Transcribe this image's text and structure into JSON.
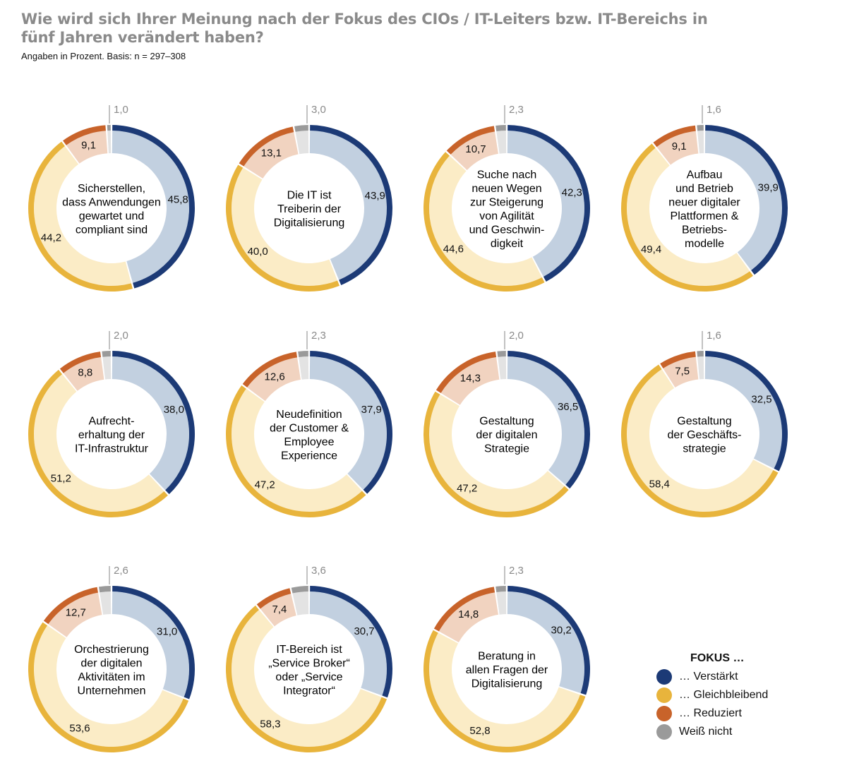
{
  "title": "Wie wird sich Ihrer Meinung nach der Fokus des CIOs / IT-Leiters bzw. IT-Bereichs in fünf Jahren verändert haben?",
  "subtitle": "Angaben in Prozent. Basis: n = 297–308",
  "legend": {
    "title": "FOKUS …",
    "items": [
      {
        "label": "… Verstärkt",
        "color": "#1c3a76"
      },
      {
        "label": "… Gleichbleibend",
        "color": "#e8b43c"
      },
      {
        "label": "… Reduziert",
        "color": "#c8632a"
      },
      {
        "label": "Weiß nicht",
        "color": "#9a9a9a"
      }
    ]
  },
  "colors": {
    "verstaerkt_outer": "#1c3a76",
    "verstaerkt_inner": "#c2d0e0",
    "gleich_outer": "#e8b43c",
    "gleich_inner": "#fbecc6",
    "reduziert_outer": "#c8632a",
    "reduziert_inner": "#f1d3c0",
    "weiss_outer": "#9a9a9a",
    "weiss_inner": "#e3e3e3"
  },
  "chart_data": {
    "type": "donut",
    "series_names": [
      "… Verstärkt",
      "… Gleichbleibend",
      "… Reduziert",
      "Weiß nicht"
    ],
    "charts": [
      {
        "label": [
          "Sicherstellen,",
          "dass Anwendungen",
          "gewartet und",
          "compliant sind"
        ],
        "values": [
          45.8,
          44.2,
          9.1,
          1.0
        ],
        "value_labels": [
          "45,8",
          "44,2",
          "9,1",
          "1,0"
        ]
      },
      {
        "label": [
          "Die IT ist",
          "Treiberin der",
          "Digitalisierung"
        ],
        "values": [
          43.9,
          40.0,
          13.1,
          3.0
        ],
        "value_labels": [
          "43,9",
          "40,0",
          "13,1",
          "3,0"
        ]
      },
      {
        "label": [
          "Suche nach",
          "neuen Wegen",
          "zur Steigerung",
          "von Agilität",
          "und Geschwin-",
          "digkeit"
        ],
        "values": [
          42.3,
          44.6,
          10.7,
          2.3
        ],
        "value_labels": [
          "42,3",
          "44,6",
          "10,7",
          "2,3"
        ]
      },
      {
        "label": [
          "Aufbau",
          "und Betrieb",
          "neuer digitaler",
          "Plattformen &",
          "Betriebs-",
          "modelle"
        ],
        "values": [
          39.9,
          49.4,
          9.1,
          1.6
        ],
        "value_labels": [
          "39,9",
          "49,4",
          "9,1",
          "1,6"
        ]
      },
      {
        "label": [
          "Aufrecht-",
          "erhaltung der",
          "IT-Infrastruktur"
        ],
        "values": [
          38.0,
          51.2,
          8.8,
          2.0
        ],
        "value_labels": [
          "38,0",
          "51,2",
          "8,8",
          "2,0"
        ]
      },
      {
        "label": [
          "Neudefinition",
          "der Customer &",
          "Employee",
          "Experience"
        ],
        "values": [
          37.9,
          47.2,
          12.6,
          2.3
        ],
        "value_labels": [
          "37,9",
          "47,2",
          "12,6",
          "2,3"
        ]
      },
      {
        "label": [
          "Gestaltung",
          "der digitalen",
          "Strategie"
        ],
        "values": [
          36.5,
          47.2,
          14.3,
          2.0
        ],
        "value_labels": [
          "36,5",
          "47,2",
          "14,3",
          "2,0"
        ]
      },
      {
        "label": [
          "Gestaltung",
          "der Geschäfts-",
          "strategie"
        ],
        "values": [
          32.5,
          58.4,
          7.5,
          1.6
        ],
        "value_labels": [
          "32,5",
          "58,4",
          "7,5",
          "1,6"
        ]
      },
      {
        "label": [
          "Orchestrierung",
          "der digitalen",
          "Aktivitäten im",
          "Unternehmen"
        ],
        "values": [
          31.0,
          53.6,
          12.7,
          2.6
        ],
        "value_labels": [
          "31,0",
          "53,6",
          "12,7",
          "2,6"
        ]
      },
      {
        "label": [
          "IT-Bereich ist",
          "„Service Broker“",
          "oder „Service",
          "Integrator“"
        ],
        "values": [
          30.7,
          58.3,
          7.4,
          3.6
        ],
        "value_labels": [
          "30,7",
          "58,3",
          "7,4",
          "3,6"
        ]
      },
      {
        "label": [
          "Beratung in",
          "allen Fragen der",
          "Digitalisierung"
        ],
        "values": [
          30.2,
          52.8,
          14.8,
          2.3
        ],
        "value_labels": [
          "30,2",
          "52,8",
          "14,8",
          "2,3"
        ]
      }
    ]
  }
}
